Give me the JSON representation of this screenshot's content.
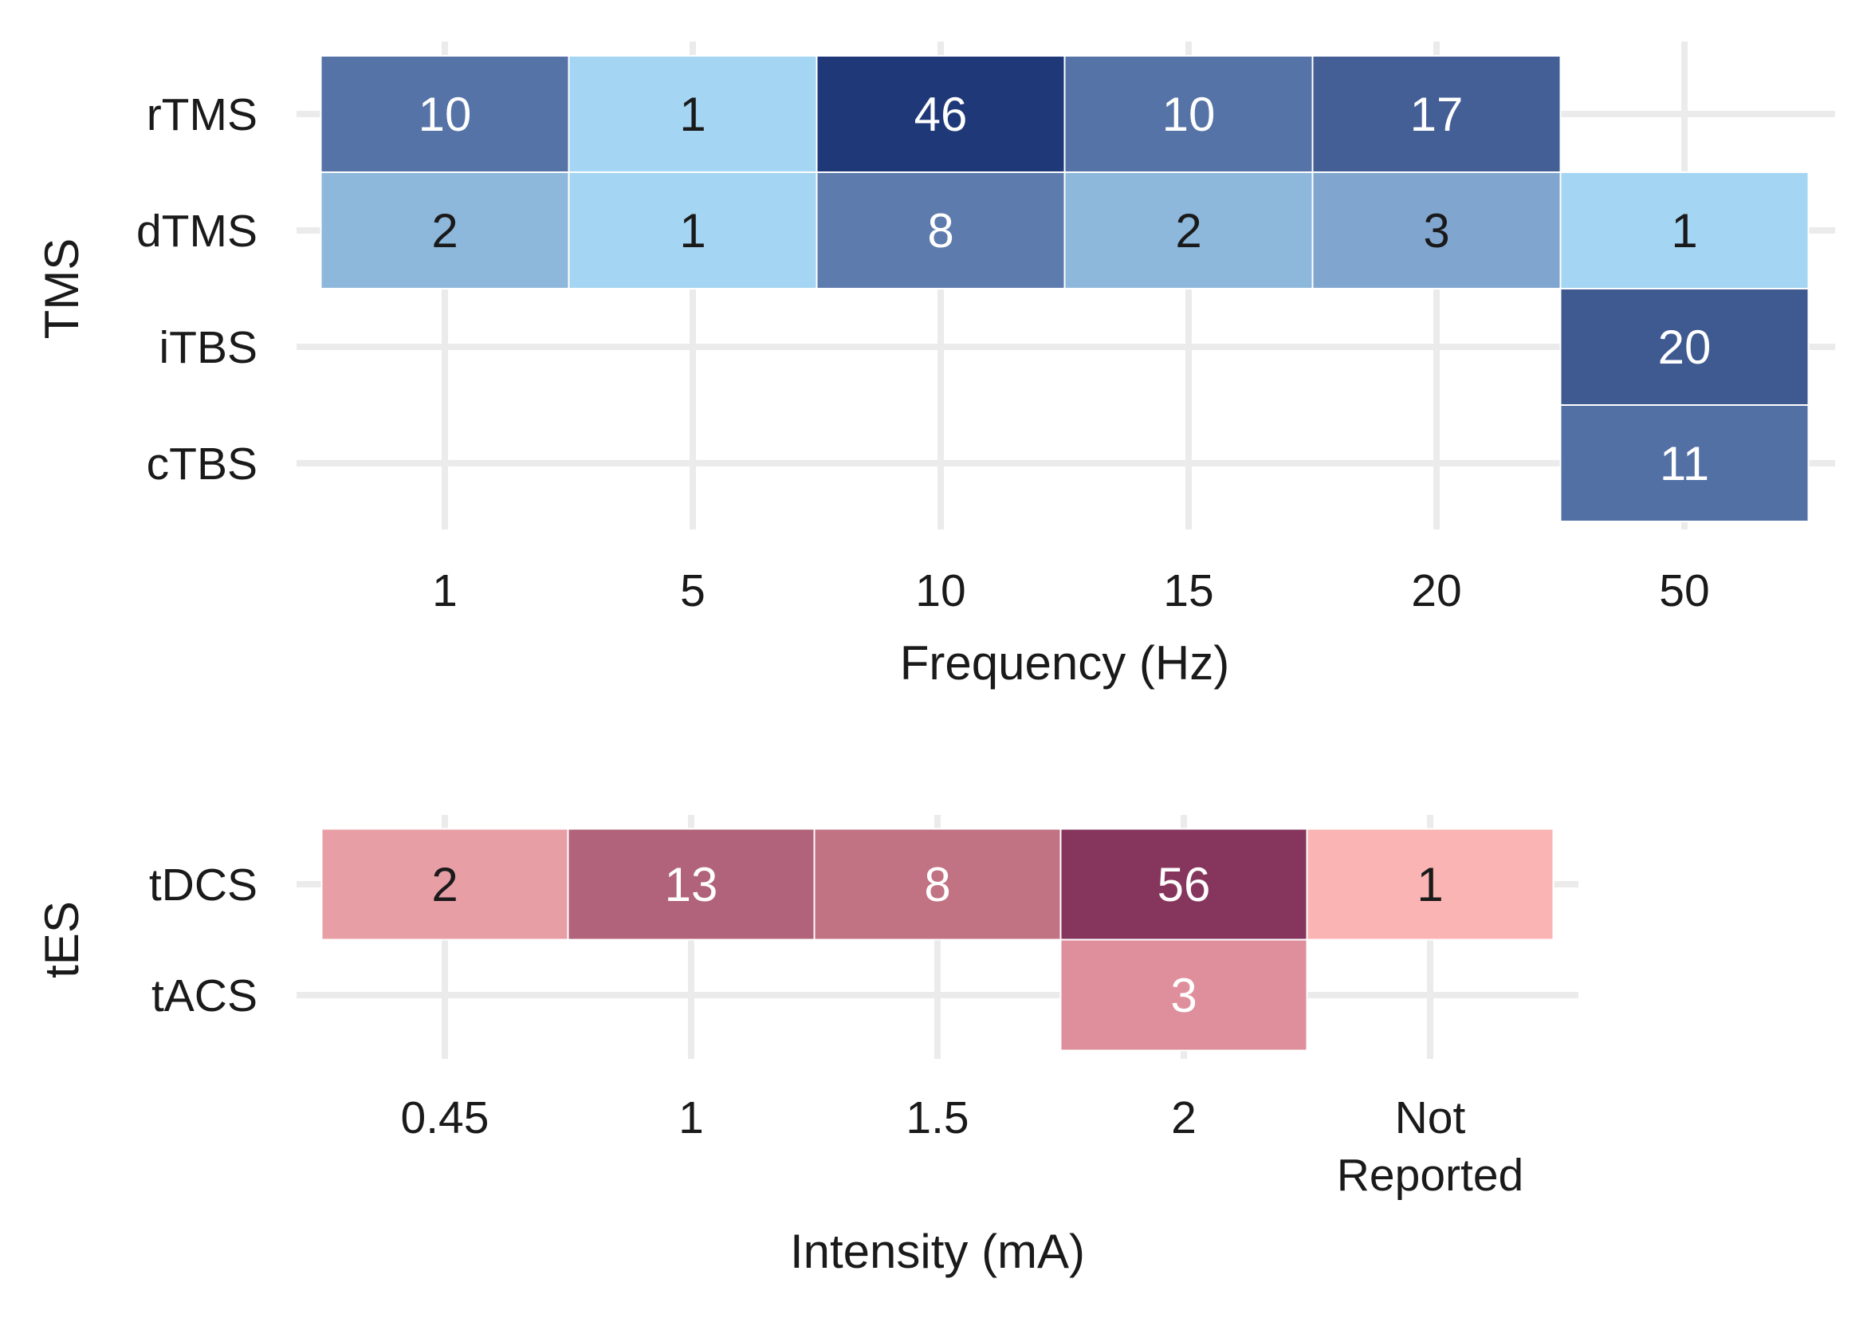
{
  "chart_data": [
    {
      "type": "heatmap",
      "title": "",
      "xlabel": "Frequency (Hz)",
      "ylabel": "TMS",
      "x_categories": [
        "1",
        "5",
        "10",
        "15",
        "20",
        "50"
      ],
      "y_categories": [
        "rTMS",
        "dTMS",
        "iTBS",
        "cTBS"
      ],
      "cells": [
        {
          "y": "rTMS",
          "x": "1",
          "value": 10,
          "color": "#5573a7",
          "label_color": "#ffffff"
        },
        {
          "y": "rTMS",
          "x": "5",
          "value": 1,
          "color": "#a4d5f2",
          "label_color": "#1a1a1a"
        },
        {
          "y": "rTMS",
          "x": "10",
          "value": 46,
          "color": "#1f3877",
          "label_color": "#ffffff"
        },
        {
          "y": "rTMS",
          "x": "15",
          "value": 10,
          "color": "#5573a7",
          "label_color": "#ffffff"
        },
        {
          "y": "rTMS",
          "x": "20",
          "value": 17,
          "color": "#445e96",
          "label_color": "#ffffff"
        },
        {
          "y": "dTMS",
          "x": "1",
          "value": 2,
          "color": "#8db8dc",
          "label_color": "#1a1a1a"
        },
        {
          "y": "dTMS",
          "x": "5",
          "value": 1,
          "color": "#a4d5f2",
          "label_color": "#1a1a1a"
        },
        {
          "y": "dTMS",
          "x": "10",
          "value": 8,
          "color": "#5e7bae",
          "label_color": "#ffffff"
        },
        {
          "y": "dTMS",
          "x": "15",
          "value": 2,
          "color": "#8db8dc",
          "label_color": "#1a1a1a"
        },
        {
          "y": "dTMS",
          "x": "20",
          "value": 3,
          "color": "#80a6d0",
          "label_color": "#1a1a1a"
        },
        {
          "y": "dTMS",
          "x": "50",
          "value": 1,
          "color": "#a4d5f2",
          "label_color": "#1a1a1a"
        },
        {
          "y": "iTBS",
          "x": "50",
          "value": 20,
          "color": "#3f5991",
          "label_color": "#ffffff"
        },
        {
          "y": "cTBS",
          "x": "50",
          "value": 11,
          "color": "#5370a5",
          "label_color": "#ffffff"
        }
      ],
      "grid": true
    },
    {
      "type": "heatmap",
      "title": "",
      "xlabel": "Intensity (mA)",
      "ylabel": "tES",
      "x_categories": [
        "0.45",
        "1",
        "1.5",
        "2",
        "Not\nReported"
      ],
      "y_categories": [
        "tDCS",
        "tACS"
      ],
      "cells": [
        {
          "y": "tDCS",
          "x": "0.45",
          "value": 2,
          "color": "#e89ea5",
          "label_color": "#1a1a1a"
        },
        {
          "y": "tDCS",
          "x": "1",
          "value": 13,
          "color": "#b0637b",
          "label_color": "#ffffff"
        },
        {
          "y": "tDCS",
          "x": "1.5",
          "value": 8,
          "color": "#c17283",
          "label_color": "#ffffff"
        },
        {
          "y": "tDCS",
          "x": "2",
          "value": 56,
          "color": "#86365d",
          "label_color": "#ffffff"
        },
        {
          "y": "tDCS",
          "x": "Not\nReported",
          "value": 1,
          "color": "#fbb4b4",
          "label_color": "#1a1a1a"
        },
        {
          "y": "tACS",
          "x": "2",
          "value": 3,
          "color": "#de8f9b",
          "label_color": "#ffffff"
        }
      ],
      "grid": true
    }
  ]
}
